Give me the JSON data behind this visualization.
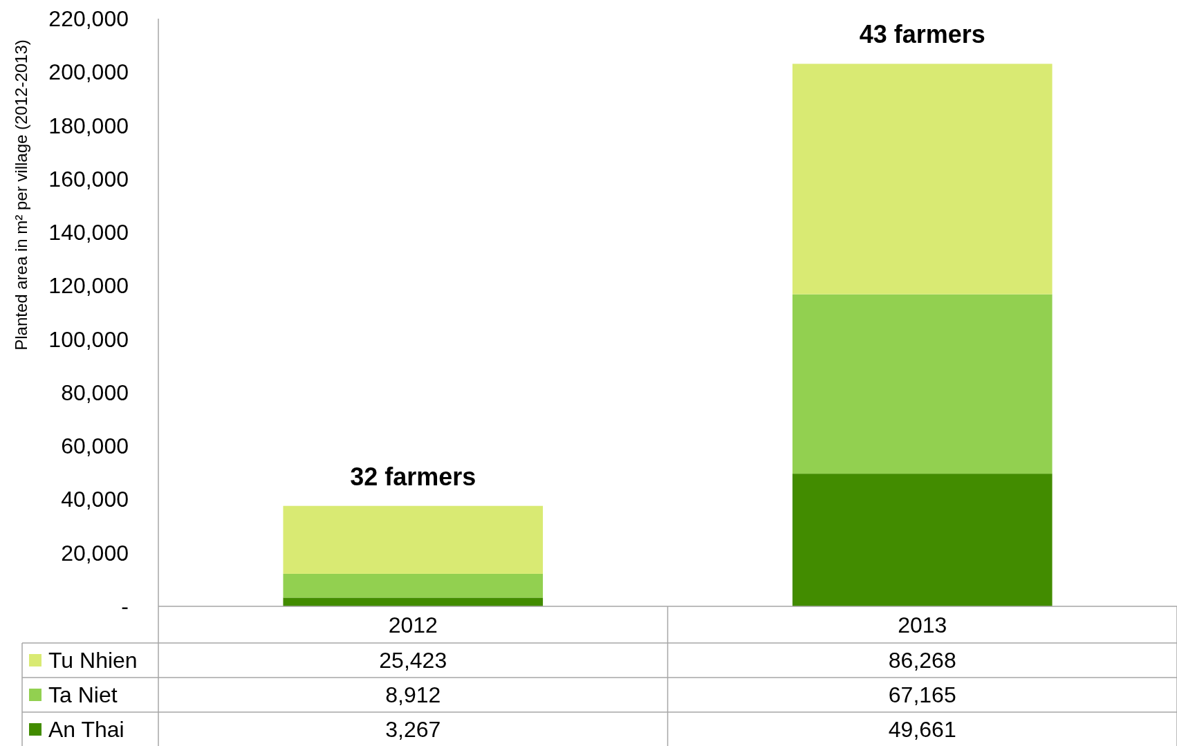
{
  "chart_data": {
    "type": "bar",
    "stacked": true,
    "ylabel": "Planted area in m² per village (2012-2013)",
    "categories": [
      "2012",
      "2013"
    ],
    "series": [
      {
        "name": "An Thai",
        "color": "#428c00",
        "values": [
          3267,
          49661
        ],
        "value_labels": [
          "3,267",
          "49,661"
        ]
      },
      {
        "name": "Ta Niet",
        "color": "#92d050",
        "values": [
          8912,
          67165
        ],
        "value_labels": [
          "8,912",
          "67,165"
        ]
      },
      {
        "name": "Tu Nhien",
        "color": "#d9ea73",
        "values": [
          25423,
          86268
        ],
        "value_labels": [
          "25,423",
          "86,268"
        ]
      }
    ],
    "ylim": [
      0,
      220000
    ],
    "yticks": [
      {
        "value": 0,
        "label": "-"
      },
      {
        "value": 20000,
        "label": "20,000"
      },
      {
        "value": 40000,
        "label": "40,000"
      },
      {
        "value": 60000,
        "label": "60,000"
      },
      {
        "value": 80000,
        "label": "80,000"
      },
      {
        "value": 100000,
        "label": "100,000"
      },
      {
        "value": 120000,
        "label": "120,000"
      },
      {
        "value": 140000,
        "label": "140,000"
      },
      {
        "value": 160000,
        "label": "160,000"
      },
      {
        "value": 180000,
        "label": "180,000"
      },
      {
        "value": 200000,
        "label": "200,000"
      },
      {
        "value": 220000,
        "label": "220,000"
      }
    ],
    "grid": false,
    "legend": "bottom",
    "annotations": [
      {
        "text": "32 farmers",
        "x": "2012",
        "y": 37602
      },
      {
        "text": "43 farmers",
        "x": "2013",
        "y": 203094
      }
    ]
  }
}
